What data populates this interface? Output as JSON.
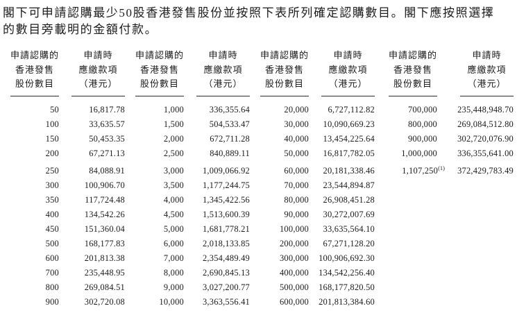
{
  "intro": {
    "line1": "閣下可申請認購最少50股香港發售股份並按照下表所列確定認購數目。閣下應按照選擇",
    "line2": "的數目旁載明的金額付款。"
  },
  "table": {
    "pairs": 4,
    "header_shares_lines": [
      "申請認購的",
      "香港發售",
      "股份數目"
    ],
    "header_amount_lines": [
      "申請時",
      "應繳款項",
      "（港元）"
    ],
    "rows": [
      [
        "50",
        "16,817.78",
        "1,000",
        "336,355.64",
        "20,000",
        "6,727,112.82",
        "700,000",
        "235,448,948.70"
      ],
      [
        "100",
        "33,635.57",
        "1,500",
        "504,533.47",
        "30,000",
        "10,090,669.23",
        "800,000",
        "269,084,512.80"
      ],
      [
        "150",
        "50,453.35",
        "2,000",
        "672,711.28",
        "40,000",
        "13,454,225.64",
        "900,000",
        "302,720,076.90"
      ],
      [
        "200",
        "67,271.13",
        "2,500",
        "840,889.11",
        "50,000",
        "16,817,782.05",
        "1,000,000",
        "336,355,641.00"
      ],
      [
        "250",
        "84,088.91",
        "3,000",
        "1,009,066.92",
        "60,000",
        "20,181,338.46",
        "1,107,250",
        "372,429,783.49"
      ],
      [
        "300",
        "100,906.70",
        "3,500",
        "1,177,244.75",
        "70,000",
        "23,544,894.87",
        "",
        ""
      ],
      [
        "350",
        "117,724.48",
        "4,000",
        "1,345,422.56",
        "80,000",
        "26,908,451.28",
        "",
        ""
      ],
      [
        "400",
        "134,542.26",
        "4,500",
        "1,513,600.39",
        "90,000",
        "30,272,007.69",
        "",
        ""
      ],
      [
        "450",
        "151,360.04",
        "5,000",
        "1,681,778.21",
        "100,000",
        "33,635,564.10",
        "",
        ""
      ],
      [
        "500",
        "168,177.83",
        "6,000",
        "2,018,133.85",
        "200,000",
        "67,271,128.20",
        "",
        ""
      ],
      [
        "600",
        "201,813.38",
        "7,000",
        "2,354,489.49",
        "300,000",
        "100,906,692.30",
        "",
        ""
      ],
      [
        "700",
        "235,448.95",
        "8,000",
        "2,690,845.13",
        "400,000",
        "134,542,256.40",
        "",
        ""
      ],
      [
        "800",
        "269,084.51",
        "9,000",
        "3,027,200.77",
        "500,000",
        "168,177,820.50",
        "",
        ""
      ],
      [
        "900",
        "302,720.08",
        "10,000",
        "3,363,556.41",
        "600,000",
        "201,813,384.60",
        "",
        ""
      ]
    ],
    "footnote": {
      "row_index": 4,
      "col_index": 6,
      "marker": "(1)"
    }
  }
}
